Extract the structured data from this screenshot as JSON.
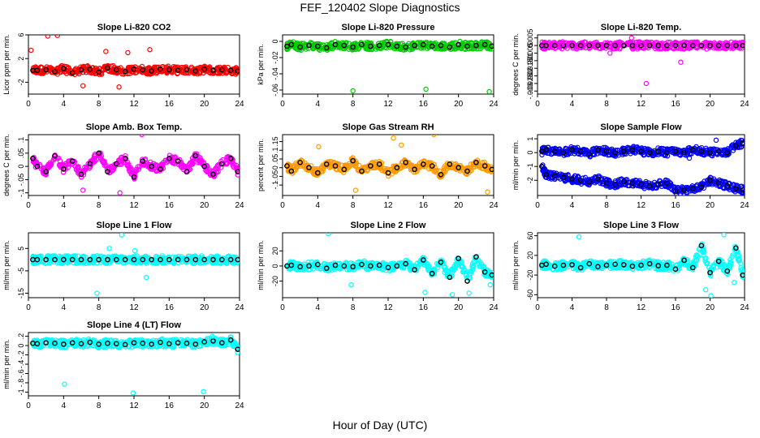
{
  "figure": {
    "title": "FEF_120402  Slope Diagnostics",
    "xlabel": "Hour of Day (UTC)"
  },
  "chart_data": [
    {
      "type": "scatter",
      "title": "Slope Li-820 CO2",
      "ylabel": "Licor ppm per min.",
      "xlim": [
        0,
        24
      ],
      "ylim": [
        -4,
        6
      ],
      "xticks": [
        0,
        4,
        8,
        12,
        16,
        20,
        24
      ],
      "yticks": [
        -2,
        2,
        6
      ],
      "colors": {
        "points": "#ff0000",
        "highlight": "#000000"
      },
      "series": [
        {
          "x": [
            0.5,
            1,
            2,
            3,
            4,
            5,
            6,
            7,
            8,
            9,
            10,
            11,
            12,
            13,
            14,
            15,
            16,
            17,
            18,
            19,
            20,
            21,
            22,
            23,
            23.8
          ],
          "y": [
            0,
            0,
            0.1,
            -0.2,
            0.3,
            -0.4,
            0.1,
            0.2,
            -0.3,
            0.4,
            0.1,
            -0.2,
            0.2,
            0.1,
            -0.1,
            0.2,
            0.1,
            0,
            0.1,
            -0.1,
            0.2,
            0,
            0.1,
            0,
            -0.1
          ]
        }
      ],
      "outliers": [
        [
          0.3,
          3.4
        ],
        [
          2.2,
          5.8
        ],
        [
          3.3,
          5.9
        ],
        [
          8.8,
          3.2
        ],
        [
          11.3,
          3.0
        ],
        [
          13.8,
          3.5
        ],
        [
          6.2,
          -2.6
        ],
        [
          10.3,
          -2.8
        ]
      ]
    },
    {
      "type": "scatter",
      "title": "Slope Li-820 Pressure",
      "ylabel": "kPa per min.",
      "xlim": [
        0,
        24
      ],
      "ylim": [
        -0.065,
        0.008
      ],
      "xticks": [
        0,
        4,
        8,
        12,
        16,
        20,
        24
      ],
      "yticks": [
        -0.06,
        -0.04,
        -0.02,
        0
      ],
      "colors": {
        "points": "#00cc00",
        "highlight": "#000000"
      },
      "series": [
        {
          "x": [
            0.5,
            1,
            2,
            3,
            4,
            5,
            6,
            7,
            8,
            9,
            10,
            11,
            12,
            13,
            14,
            15,
            16,
            17,
            18,
            19,
            20,
            21,
            22,
            23,
            23.8
          ],
          "y": [
            -0.006,
            -0.004,
            -0.007,
            -0.005,
            -0.006,
            -0.008,
            -0.004,
            -0.005,
            -0.007,
            -0.004,
            -0.006,
            -0.005,
            -0.004,
            -0.006,
            -0.007,
            -0.005,
            -0.004,
            -0.006,
            -0.005,
            -0.007,
            -0.004,
            -0.006,
            -0.005,
            -0.004,
            -0.006
          ]
        }
      ],
      "outliers": [
        [
          8.0,
          -0.061
        ],
        [
          16.3,
          -0.059
        ],
        [
          23.5,
          -0.062
        ]
      ]
    },
    {
      "type": "scatter",
      "title": "Slope Li-820 Temp.",
      "ylabel": "degrees C per min.",
      "xlim": [
        0,
        24
      ],
      "ylim": [
        -0.0032,
        0.0007
      ],
      "xticks": [
        0,
        4,
        8,
        12,
        16,
        20,
        24
      ],
      "yticks": [
        -0.003,
        -0.0025,
        -0.002,
        -0.0015,
        -0.001,
        -0.0005,
        0,
        0.0005
      ],
      "colors": {
        "points": "#ff00ff",
        "highlight": "#000000"
      },
      "series": [
        {
          "x": [
            0.5,
            1,
            2,
            3,
            4,
            5,
            6,
            7,
            8,
            9,
            10,
            11,
            12,
            13,
            14,
            15,
            16,
            17,
            18,
            19,
            20,
            21,
            22,
            23,
            23.8
          ],
          "y": [
            0,
            0,
            0,
            0,
            0,
            0,
            0,
            0,
            0,
            0,
            0,
            0,
            0,
            0,
            0,
            0,
            0,
            0,
            0,
            0,
            0,
            0,
            0,
            0,
            0
          ]
        }
      ],
      "outliers": [
        [
          2.9,
          0.00025
        ],
        [
          10.9,
          0.0005
        ],
        [
          12.6,
          -0.0025
        ],
        [
          16.6,
          -0.0011
        ],
        [
          11.8,
          0.00025
        ],
        [
          8.4,
          -0.0005
        ]
      ]
    },
    {
      "type": "scatter",
      "title": "Slope Amb. Box Temp.",
      "ylabel": "degrees C per min.",
      "xlim": [
        0,
        24
      ],
      "ylim": [
        -0.11,
        0.12
      ],
      "xticks": [
        0,
        4,
        8,
        12,
        16,
        20,
        24
      ],
      "yticks": [
        -0.1,
        -0.05,
        0,
        0.05,
        0.1
      ],
      "colors": {
        "points": "#ff00ff",
        "highlight": "#000000"
      },
      "series": [
        {
          "x": [
            0.5,
            1,
            2,
            3,
            4,
            5,
            6,
            7,
            8,
            9,
            10,
            11,
            12,
            13,
            14,
            15,
            16,
            17,
            18,
            19,
            20,
            21,
            22,
            23,
            23.8
          ],
          "y": [
            0.03,
            0,
            -0.02,
            0.04,
            -0.01,
            0.02,
            -0.03,
            0.01,
            0.05,
            -0.02,
            0.01,
            0.03,
            -0.04,
            0.02,
            0,
            -0.01,
            0.03,
            0.02,
            -0.02,
            0.04,
            0,
            -0.03,
            0.01,
            0.03,
            -0.02
          ]
        }
      ],
      "outliers": [
        [
          12.9,
          0.12
        ],
        [
          10.4,
          -0.1
        ],
        [
          6.2,
          -0.09
        ]
      ]
    },
    {
      "type": "scatter",
      "title": "Slope Gas Stream RH",
      "ylabel": "percent per min.",
      "xlim": [
        0,
        24
      ],
      "ylim": [
        -0.16,
        0.19
      ],
      "xticks": [
        0,
        4,
        8,
        12,
        16,
        20,
        24
      ],
      "yticks": [
        -0.1,
        -0.05,
        0,
        0.05,
        0.1,
        0.15
      ],
      "colors": {
        "points": "#ff9900",
        "highlight": "#000000"
      },
      "series": [
        {
          "x": [
            0.5,
            1,
            2,
            3,
            4,
            5,
            6,
            7,
            8,
            9,
            10,
            11,
            12,
            13,
            14,
            15,
            16,
            17,
            18,
            19,
            20,
            21,
            22,
            23,
            23.8
          ],
          "y": [
            0.01,
            -0.02,
            0.03,
            0,
            -0.03,
            0.02,
            0.01,
            -0.01,
            0.04,
            -0.02,
            0.01,
            0.02,
            -0.03,
            0,
            0.03,
            -0.01,
            0.02,
            0.01,
            -0.04,
            0.02,
            0,
            -0.02,
            0.03,
            0.01,
            -0.01
          ]
        }
      ],
      "outliers": [
        [
          12.6,
          0.17
        ],
        [
          17.2,
          0.19
        ],
        [
          8.3,
          -0.13
        ],
        [
          13.5,
          0.13
        ],
        [
          23.3,
          -0.14
        ],
        [
          4.1,
          0.12
        ]
      ]
    },
    {
      "type": "scatter",
      "title": "Slope Sample Flow",
      "ylabel": "ml/min per min.",
      "xlim": [
        0,
        24
      ],
      "ylim": [
        -3.1,
        1.3
      ],
      "xticks": [
        0,
        4,
        8,
        12,
        16,
        20,
        24
      ],
      "yticks": [
        -2,
        -1,
        0,
        1
      ],
      "colors": {
        "points": "#0000ff",
        "highlight": "#000000"
      },
      "series": [
        {
          "name": "",
          "x": [
            0.5,
            1,
            2,
            3,
            4,
            5,
            6,
            7,
            8,
            9,
            10,
            11,
            12,
            13,
            14,
            15,
            16,
            17,
            18,
            19,
            20,
            21,
            22,
            23,
            23.8
          ],
          "y": [
            0.1,
            0.2,
            0.1,
            0,
            0.2,
            0.1,
            -0.1,
            0.2,
            0.1,
            0,
            0.1,
            0.2,
            0.1,
            0,
            0.1,
            0,
            0.1,
            0,
            0.2,
            0.1,
            0,
            0.1,
            0,
            0.5,
            0.7
          ]
        },
        {
          "name": "",
          "x": [
            0.5,
            1,
            2,
            3,
            4,
            5,
            6,
            7,
            8,
            9,
            10,
            11,
            12,
            13,
            14,
            15,
            16,
            17,
            18,
            19,
            20,
            21,
            22,
            23,
            23.8
          ],
          "y": [
            -1,
            -1.6,
            -1.7,
            -1.8,
            -1.9,
            -2,
            -2.1,
            -1.9,
            -2.2,
            -2.3,
            -2.1,
            -2.2,
            -2.3,
            -2.4,
            -2.3,
            -2.2,
            -2.8,
            -2.7,
            -2.6,
            -2.5,
            -2,
            -2.2,
            -2.4,
            -2.6,
            -2.7
          ]
        }
      ],
      "outliers": [
        [
          0.6,
          -0.9
        ],
        [
          20.7,
          0.9
        ],
        [
          17.6,
          -0.4
        ]
      ]
    },
    {
      "type": "scatter",
      "title": "Slope Line 1 Flow",
      "ylabel": "ml/min per min.",
      "xlim": [
        0,
        24
      ],
      "ylim": [
        -17,
        12
      ],
      "xticks": [
        0,
        4,
        8,
        12,
        16,
        20,
        24
      ],
      "yticks": [
        -15,
        -5,
        5
      ],
      "colors": {
        "points": "#00ffff",
        "highlight": "#000000"
      },
      "series": [
        {
          "x": [
            0.5,
            1,
            2,
            3,
            4,
            5,
            6,
            7,
            8,
            9,
            10,
            11,
            12,
            13,
            14,
            15,
            16,
            17,
            18,
            19,
            20,
            21,
            22,
            23,
            23.8
          ],
          "y": [
            0,
            0,
            0,
            0,
            0,
            0,
            0,
            0,
            0,
            0,
            0,
            0,
            0,
            0,
            0,
            0,
            0,
            0,
            0,
            0,
            0,
            0,
            0,
            0,
            0
          ]
        }
      ],
      "outliers": [
        [
          7.8,
          -15
        ],
        [
          10.6,
          11
        ],
        [
          13.4,
          -8
        ],
        [
          9.2,
          5
        ],
        [
          12.1,
          4
        ]
      ]
    },
    {
      "type": "scatter",
      "title": "Slope Line 2 Flow",
      "ylabel": "ml/min per min.",
      "xlim": [
        0,
        24
      ],
      "ylim": [
        -42,
        44
      ],
      "xticks": [
        0,
        4,
        8,
        12,
        16,
        20,
        24
      ],
      "yticks": [
        -20,
        0,
        20
      ],
      "colors": {
        "points": "#00ffff",
        "highlight": "#000000"
      },
      "series": [
        {
          "x": [
            0.5,
            1,
            2,
            3,
            4,
            5,
            6,
            7,
            8,
            9,
            10,
            11,
            12,
            13,
            14,
            15,
            16,
            17,
            18,
            19,
            20,
            21,
            22,
            23,
            23.8
          ],
          "y": [
            0,
            1,
            -1,
            0,
            2,
            -3,
            1,
            0,
            -1,
            2,
            0,
            1,
            -2,
            0,
            3,
            -5,
            8,
            -10,
            5,
            -15,
            10,
            -20,
            12,
            -8,
            -12
          ]
        }
      ],
      "outliers": [
        [
          5.2,
          43
        ],
        [
          7.8,
          -25
        ],
        [
          16.2,
          -35
        ],
        [
          19.3,
          -38
        ],
        [
          21.2,
          -36
        ],
        [
          23.6,
          -25
        ]
      ]
    },
    {
      "type": "scatter",
      "title": "Slope Line 3 Flow",
      "ylabel": "ml/min per min.",
      "xlim": [
        0,
        24
      ],
      "ylim": [
        -66,
        66
      ],
      "xticks": [
        0,
        4,
        8,
        12,
        16,
        20,
        24
      ],
      "yticks": [
        -60,
        -20,
        20,
        60
      ],
      "colors": {
        "points": "#00ffff",
        "highlight": "#000000"
      },
      "series": [
        {
          "x": [
            0.5,
            1,
            2,
            3,
            4,
            5,
            6,
            7,
            8,
            9,
            10,
            11,
            12,
            13,
            14,
            15,
            16,
            17,
            18,
            19,
            20,
            21,
            22,
            23,
            23.8
          ],
          "y": [
            0,
            2,
            -2,
            0,
            1,
            -5,
            3,
            -3,
            0,
            2,
            1,
            -2,
            0,
            3,
            -1,
            0,
            -8,
            10,
            -5,
            40,
            -15,
            8,
            -12,
            35,
            -20
          ]
        }
      ],
      "outliers": [
        [
          4.8,
          58
        ],
        [
          20.1,
          -62
        ],
        [
          21.6,
          62
        ],
        [
          19.5,
          -50
        ],
        [
          22.8,
          -35
        ]
      ]
    },
    {
      "type": "scatter",
      "title": "Slope Line 4 (LT) Flow",
      "ylabel": "ml/min per min.",
      "xlim": [
        0,
        24
      ],
      "ylim": [
        -1.08,
        0.28
      ],
      "xticks": [
        0,
        4,
        8,
        12,
        16,
        20,
        24
      ],
      "yticks": [
        -1,
        -0.8,
        -0.6,
        -0.4,
        -0.2,
        0,
        0.2
      ],
      "colors": {
        "points": "#00ffff",
        "highlight": "#000000"
      },
      "series": [
        {
          "x": [
            0.5,
            1,
            2,
            3,
            4,
            5,
            6,
            7,
            8,
            9,
            10,
            11,
            12,
            13,
            14,
            15,
            16,
            17,
            18,
            19,
            20,
            21,
            22,
            23,
            23.8
          ],
          "y": [
            0.05,
            0.04,
            0.06,
            0.05,
            0.03,
            0.06,
            0.04,
            0.07,
            0.03,
            0.05,
            0.04,
            0.02,
            0.06,
            0.05,
            0.03,
            0.07,
            0.04,
            0.06,
            0.05,
            0.03,
            0.08,
            0.1,
            0.06,
            0.12,
            -0.08
          ]
        }
      ],
      "outliers": [
        [
          4.1,
          -0.83
        ],
        [
          11.9,
          -1.02
        ],
        [
          19.9,
          -0.99
        ],
        [
          20.9,
          0.2
        ]
      ]
    }
  ]
}
